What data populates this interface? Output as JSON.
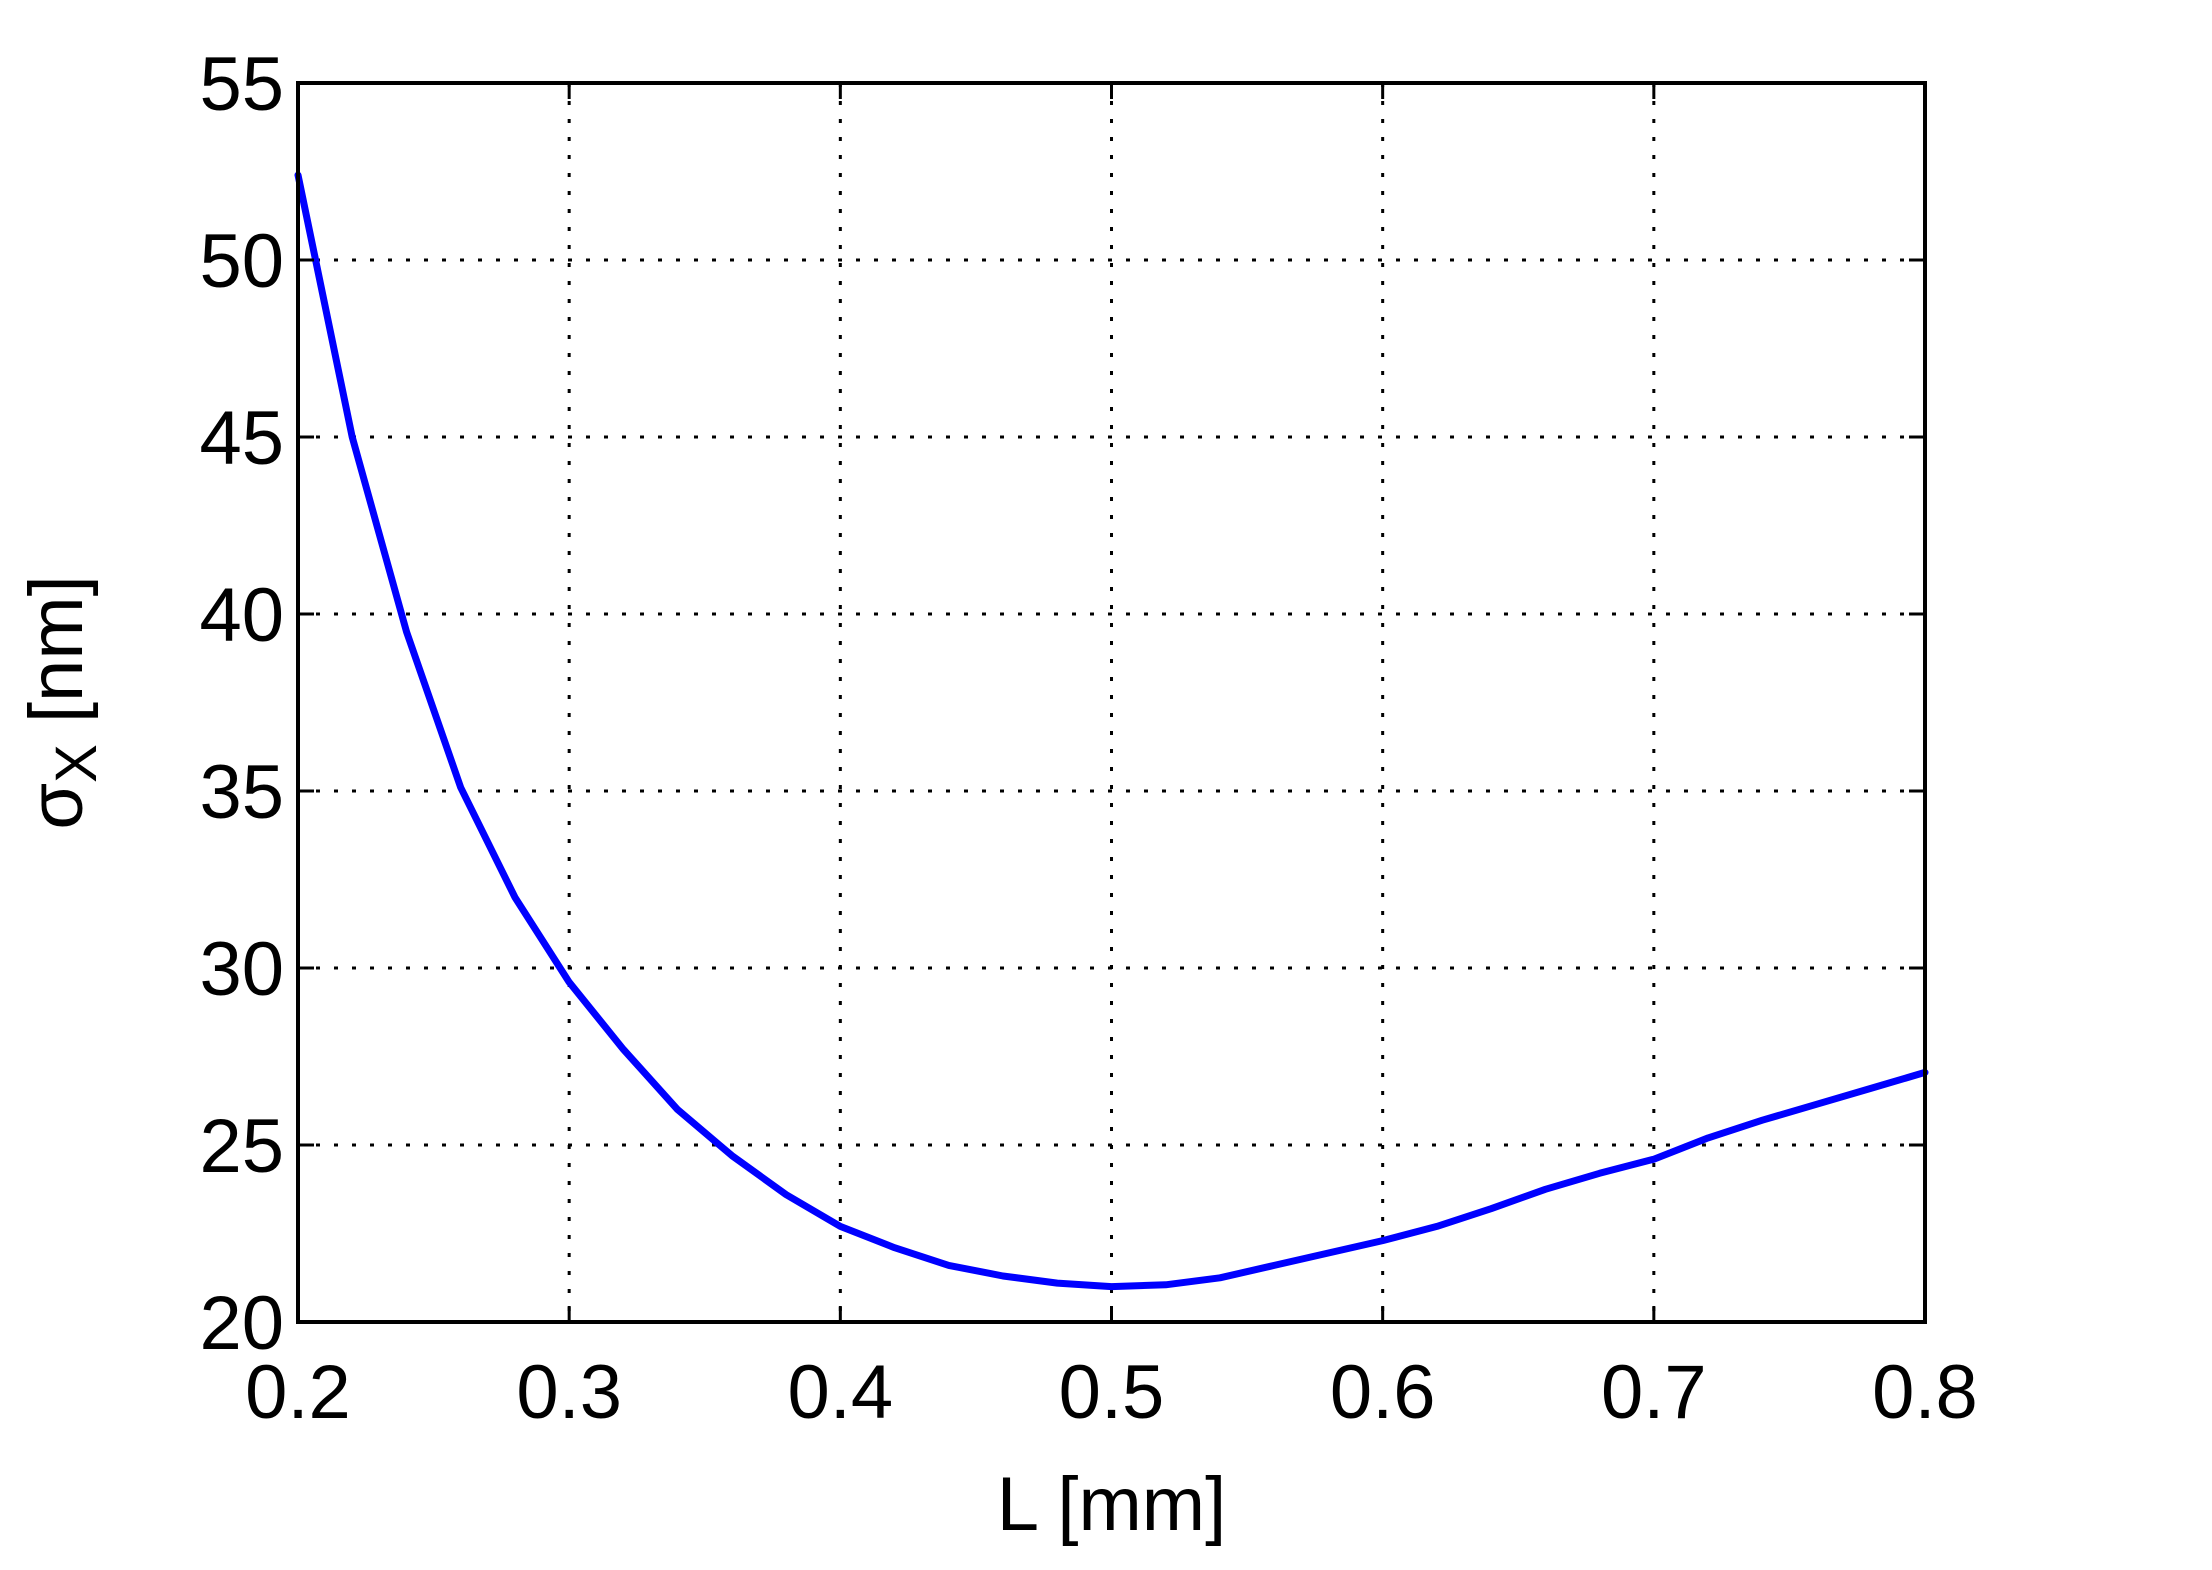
{
  "chart_data": {
    "type": "line",
    "title": "",
    "xlabel": "L [mm]",
    "ylabel": {
      "symbol": "σ",
      "subscript": "X",
      "unit": " [nm]"
    },
    "xlim": [
      0.2,
      0.8
    ],
    "ylim": [
      20,
      55
    ],
    "xticks": [
      0.2,
      0.3,
      0.4,
      0.5,
      0.6,
      0.7,
      0.8
    ],
    "xtick_labels": [
      "0.2",
      "0.3",
      "0.4",
      "0.5",
      "0.6",
      "0.7",
      "0.8"
    ],
    "yticks": [
      20,
      25,
      30,
      35,
      40,
      45,
      50,
      55
    ],
    "ytick_labels": [
      "20",
      "25",
      "30",
      "35",
      "40",
      "45",
      "50",
      "55"
    ],
    "grid": true,
    "legend": "none",
    "series": [
      {
        "color": "#0000ff",
        "x": [
          0.2,
          0.22,
          0.24,
          0.26,
          0.28,
          0.3,
          0.32,
          0.34,
          0.36,
          0.38,
          0.4,
          0.42,
          0.44,
          0.46,
          0.48,
          0.5,
          0.52,
          0.54,
          0.56,
          0.58,
          0.6,
          0.62,
          0.64,
          0.66,
          0.68,
          0.7,
          0.72,
          0.74,
          0.76,
          0.78,
          0.8
        ],
        "y": [
          52.4,
          45.0,
          39.5,
          35.1,
          32.0,
          29.6,
          27.7,
          26.0,
          24.7,
          23.6,
          22.7,
          22.1,
          21.6,
          21.3,
          21.1,
          21.0,
          21.05,
          21.25,
          21.6,
          21.95,
          22.3,
          22.7,
          23.2,
          23.75,
          24.2,
          24.6,
          25.2,
          25.7,
          26.15,
          26.6,
          27.05
        ]
      }
    ]
  }
}
